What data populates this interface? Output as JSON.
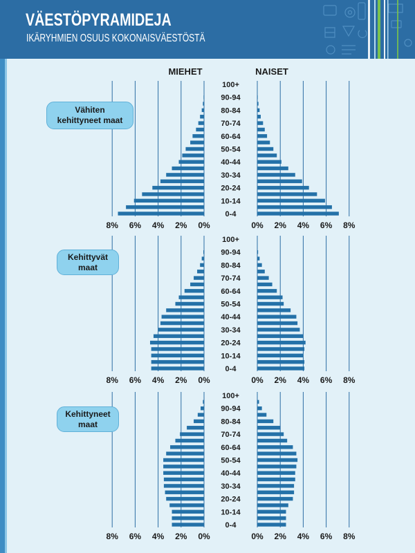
{
  "header": {
    "title": "VÄESTÖPYRAMIDEJA",
    "subtitle": "IKÄRYHMIEN OSUUS KOKONAISVÄESTÖSTÄ"
  },
  "columns": {
    "men": "MIEHET",
    "women": "NAISET"
  },
  "colors": {
    "header": "#2c6da4",
    "background": "#e2f1f8",
    "bar": "#2471a8",
    "grid": "#2c6da4",
    "pill": "#8fd2ee"
  },
  "chart_data": [
    {
      "type": "bar",
      "orientation": "horizontal",
      "title_lines": [
        "Vähiten",
        "kehittyneet maat"
      ],
      "age_labels": [
        "0-4",
        "10-14",
        "20-24",
        "30-34",
        "40-44",
        "50-54",
        "60-64",
        "70-74",
        "80-84",
        "90-94",
        "100+"
      ],
      "men": [
        7.5,
        6.8,
        6.1,
        5.4,
        4.5,
        3.8,
        3.3,
        2.8,
        2.2,
        1.9,
        1.6,
        1.2,
        1.0,
        0.7,
        0.5,
        0.35,
        0.2,
        0.1,
        0.04,
        0.01,
        0
      ],
      "women": [
        7.1,
        6.5,
        5.9,
        5.2,
        4.5,
        3.9,
        3.3,
        2.7,
        2.1,
        1.7,
        1.4,
        1.1,
        0.85,
        0.65,
        0.5,
        0.3,
        0.2,
        0.1,
        0.04,
        0.01,
        0
      ],
      "xticks": [
        0,
        2,
        4,
        6,
        8
      ],
      "tick_labels": [
        "0%",
        "2%",
        "4%",
        "6%",
        "8%"
      ],
      "xlim": [
        0,
        8
      ],
      "grid": true
    },
    {
      "type": "bar",
      "orientation": "horizontal",
      "title_lines": [
        "Kehittyvät",
        "maat"
      ],
      "age_labels": [
        "0-4",
        "10-14",
        "20-24",
        "30-34",
        "40-44",
        "50-54",
        "60-64",
        "70-74",
        "80-84",
        "90-94",
        "100+"
      ],
      "men": [
        4.6,
        4.6,
        4.6,
        4.6,
        4.7,
        4.4,
        4.0,
        3.8,
        3.7,
        3.3,
        2.5,
        2.2,
        1.7,
        1.2,
        0.9,
        0.6,
        0.35,
        0.2,
        0.06,
        0.02,
        0
      ],
      "women": [
        4.1,
        4.1,
        4.0,
        4.1,
        4.2,
        4.0,
        3.7,
        3.5,
        3.4,
        2.9,
        2.3,
        2.2,
        1.7,
        1.3,
        1.0,
        0.65,
        0.4,
        0.2,
        0.07,
        0.02,
        0
      ],
      "xticks": [
        0,
        2,
        4,
        6,
        8
      ],
      "tick_labels": [
        "0%",
        "2%",
        "4%",
        "6%",
        "8%"
      ],
      "xlim": [
        0,
        8
      ],
      "grid": true
    },
    {
      "type": "bar",
      "orientation": "horizontal",
      "title_lines": [
        "Kehittyneet",
        "maat"
      ],
      "age_labels": [
        "0-4",
        "10-14",
        "20-24",
        "30-34",
        "40-44",
        "50-54",
        "60-64",
        "70-74",
        "80-84",
        "90-94",
        "100+"
      ],
      "men": [
        2.8,
        2.8,
        2.8,
        3.0,
        3.3,
        3.4,
        3.5,
        3.5,
        3.55,
        3.55,
        3.55,
        3.3,
        2.95,
        2.5,
        2.1,
        1.5,
        0.9,
        0.55,
        0.3,
        0.1,
        0.02
      ],
      "women": [
        2.5,
        2.5,
        2.5,
        2.7,
        3.1,
        3.2,
        3.2,
        3.3,
        3.3,
        3.4,
        3.5,
        3.4,
        3.1,
        2.6,
        2.3,
        2.0,
        1.4,
        0.8,
        0.4,
        0.15,
        0.03
      ],
      "xticks": [
        0,
        2,
        4,
        6,
        8
      ],
      "tick_labels": [
        "0%",
        "2%",
        "4%",
        "6%",
        "8%"
      ],
      "xlim": [
        0,
        8
      ],
      "grid": true
    }
  ]
}
